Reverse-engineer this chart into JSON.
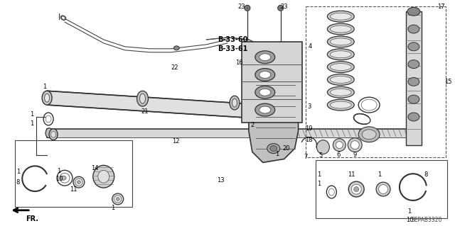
{
  "bg_color": "#ffffff",
  "diagram_code": "SEPAB3320",
  "fr_label": "FR.",
  "line_color": "#333333",
  "label_color": "#000000"
}
